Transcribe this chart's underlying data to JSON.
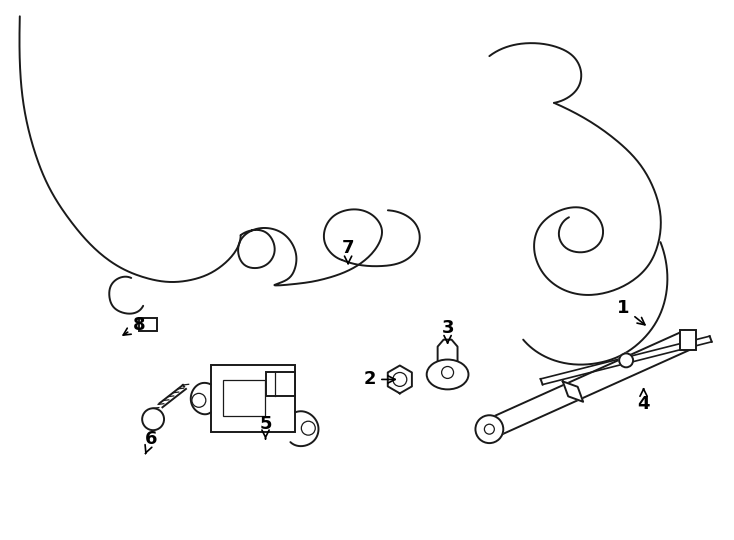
{
  "background_color": "#ffffff",
  "line_color": "#1a1a1a",
  "label_color": "#000000",
  "lw": 1.4,
  "tlw": 0.9,
  "figsize": [
    7.34,
    5.4
  ],
  "dpi": 100
}
